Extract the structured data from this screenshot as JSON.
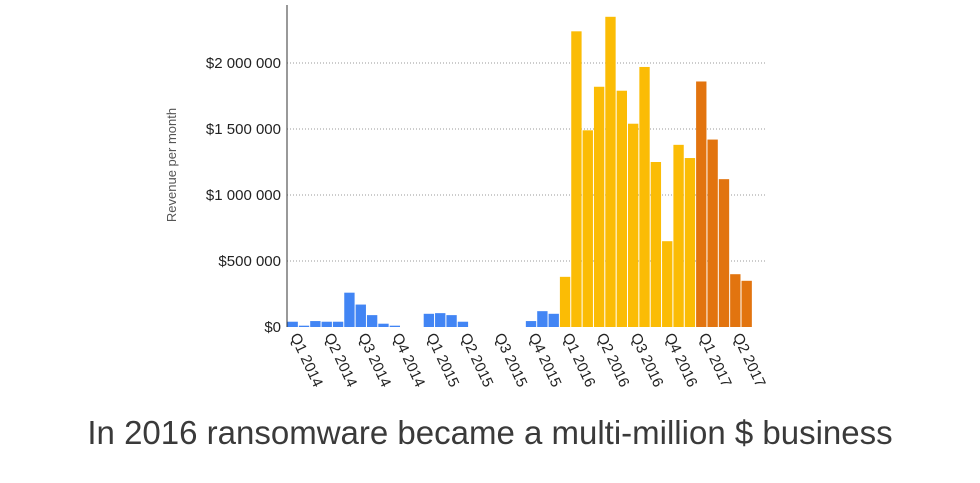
{
  "caption": "In 2016 ransomware became a multi-million $ business",
  "chart_data": {
    "type": "bar",
    "ylabel": "Revenue per month",
    "ylim": [
      0,
      2500000
    ],
    "yticks": [
      0,
      500000,
      1000000,
      1500000,
      2000000
    ],
    "ytick_labels": [
      "$0",
      "$500 000",
      "$1 000 000",
      "$1 500 000",
      "$2 000 000"
    ],
    "grid": "horizontal dotted",
    "x_tick_labels": [
      "Q1 2014",
      "Q2 2014",
      "Q3 2014",
      "Q4 2014",
      "Q1 2015",
      "Q2 2015",
      "Q3 2015",
      "Q4 2015",
      "Q1 2016",
      "Q2 2016",
      "Q3 2016",
      "Q4 2016",
      "Q1 2017",
      "Q2 2017"
    ],
    "period_colors": {
      "2014-2015": "#4285f4",
      "2016": "#fbbc05",
      "2017": "#e2740f"
    },
    "months": [
      "2014-01",
      "2014-02",
      "2014-03",
      "2014-04",
      "2014-05",
      "2014-06",
      "2014-07",
      "2014-08",
      "2014-09",
      "2014-10",
      "2014-11",
      "2014-12",
      "2015-01",
      "2015-02",
      "2015-03",
      "2015-04",
      "2015-05",
      "2015-06",
      "2015-07",
      "2015-08",
      "2015-09",
      "2015-10",
      "2015-11",
      "2015-12",
      "2016-01",
      "2016-02",
      "2016-03",
      "2016-04",
      "2016-05",
      "2016-06",
      "2016-07",
      "2016-08",
      "2016-09",
      "2016-10",
      "2016-11",
      "2016-12",
      "2017-01",
      "2017-02",
      "2017-03",
      "2017-04",
      "2017-05",
      "2017-06"
    ],
    "values": [
      40000,
      10000,
      45000,
      40000,
      40000,
      260000,
      170000,
      90000,
      25000,
      10000,
      0,
      0,
      100000,
      105000,
      90000,
      40000,
      0,
      0,
      0,
      0,
      0,
      45000,
      120000,
      100000,
      380000,
      2240000,
      1490000,
      1820000,
      2350000,
      1790000,
      1540000,
      1970000,
      1250000,
      650000,
      1380000,
      1280000,
      1860000,
      1420000,
      1120000,
      400000,
      350000,
      0
    ]
  }
}
